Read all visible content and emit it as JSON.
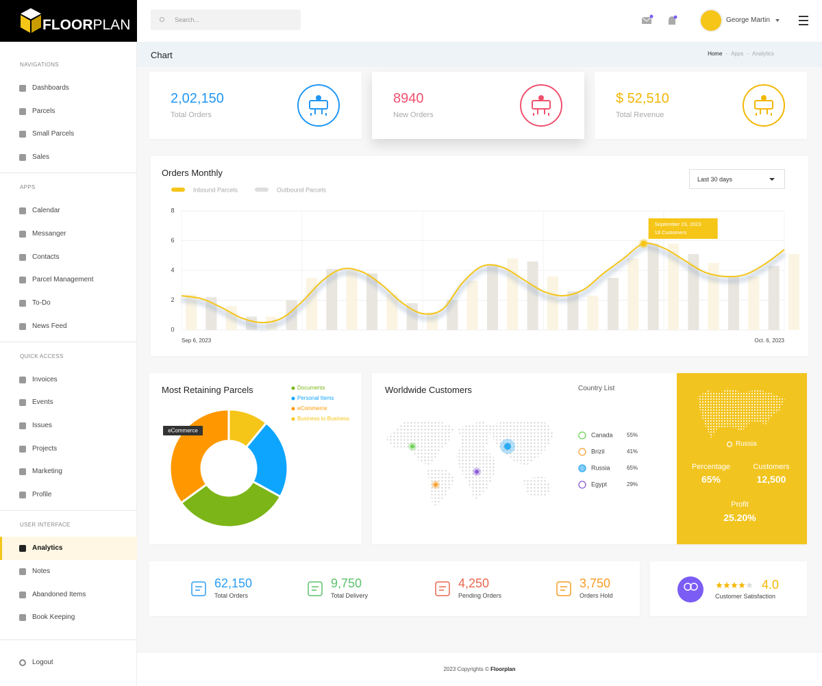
{
  "brand": {
    "bold": "FLOOR",
    "light": "PLAN"
  },
  "header": {
    "search_placeholder": "Search...",
    "user": "George Martin"
  },
  "sidebar": {
    "sections": [
      {
        "title": "NAVIGATIONS",
        "items": [
          {
            "label": "Dashboards"
          },
          {
            "label": "Parcels"
          },
          {
            "label": "Small Parcels"
          },
          {
            "label": "Sales"
          }
        ]
      },
      {
        "title": "APPS",
        "items": [
          {
            "label": "Calendar"
          },
          {
            "label": "Messanger"
          },
          {
            "label": "Contacts"
          },
          {
            "label": "Parcel Management"
          },
          {
            "label": "To-Do"
          },
          {
            "label": "News Feed"
          }
        ]
      },
      {
        "title": "QUICK ACCESS",
        "items": [
          {
            "label": "Invoices"
          },
          {
            "label": "Events"
          },
          {
            "label": "Issues"
          },
          {
            "label": "Projects"
          },
          {
            "label": "Marketing"
          },
          {
            "label": "Profile"
          }
        ]
      },
      {
        "title": "USER INTERFACE",
        "items": [
          {
            "label": "Analytics",
            "active": true
          },
          {
            "label": "Notes"
          },
          {
            "label": "Abandoned Items"
          },
          {
            "label": "Book Keeping"
          }
        ]
      }
    ],
    "logout": "Logout"
  },
  "page": {
    "title": "Chart",
    "breadcrumb": [
      "Home",
      "Apps",
      "Analytics"
    ]
  },
  "stat_cards": [
    {
      "value": "2,02,150",
      "label": "Total Orders",
      "color": "#2196f3"
    },
    {
      "value": "8940",
      "label": "New Orders",
      "color": "#f0506e"
    },
    {
      "value": "$ 52,510",
      "label": "Total Revenue",
      "color": "#f2b705"
    }
  ],
  "chart_data": [
    {
      "type": "line",
      "title": "Orders Monthly",
      "control": "Last 30 days",
      "categories": [
        "Sep 6, 2023",
        null,
        null,
        null,
        null,
        null,
        null,
        null,
        null,
        null,
        null,
        null,
        null,
        null,
        null,
        null,
        null,
        null,
        null,
        null,
        null,
        null,
        null,
        null,
        null,
        null,
        null,
        null,
        null,
        null,
        "Oct. 6, 2023"
      ],
      "series": [
        {
          "name": "Inbound Parcels",
          "color": "#f5c518",
          "values": [
            2.3,
            2.1,
            1.5,
            0.8,
            0.5,
            0.8,
            1.9,
            3.3,
            4.1,
            3.9,
            3.0,
            1.8,
            1.1,
            1.4,
            3.2,
            4.3,
            4.2,
            3.4,
            2.6,
            2.3,
            2.7,
            3.8,
            4.8,
            5.8,
            5.5,
            4.7,
            3.9,
            3.6,
            3.7,
            4.4,
            5.4
          ]
        },
        {
          "name": "Outbound Parcels",
          "type": "bar",
          "color": "#e9e6df",
          "values": [
            2.4,
            2.2,
            1.6,
            0.9,
            0.9,
            2.0,
            3.5,
            4.1,
            4.0,
            3.8,
            2.4,
            1.8,
            1.2,
            2.0,
            3.3,
            4.4,
            4.8,
            4.6,
            3.6,
            2.6,
            2.3,
            3.5,
            4.8,
            5.8,
            5.8,
            5.1,
            4.5,
            3.6,
            3.6,
            4.3,
            5.1
          ]
        }
      ],
      "annotation": {
        "title": "September 23, 2023",
        "text": "18 Customers"
      },
      "ylim": [
        0,
        8
      ],
      "yticks": [
        0,
        2,
        4,
        6,
        8
      ],
      "grid": true
    },
    {
      "type": "pie",
      "title": "Most Retaining Parcels",
      "categories": [
        "Business to Business",
        "Personal Items",
        "Documents",
        "eCommerce"
      ],
      "values": [
        11,
        22,
        32,
        35
      ],
      "colors": [
        "#f5c518",
        "#0ea5ff",
        "#7cb518",
        "#ff9800"
      ]
    }
  ],
  "world": {
    "title": "Worldwide Customers",
    "list_title": "Country List",
    "countries": [
      {
        "name": "Canada",
        "percent": "55%",
        "color": "#6fd35a"
      },
      {
        "name": "Brizil",
        "percent": "41%",
        "color": "#f7a336"
      },
      {
        "name": "Russia",
        "percent": "65%",
        "color": "#2eaaf2",
        "selected": true
      },
      {
        "name": "Egypt",
        "percent": "29%",
        "color": "#8a5cd6"
      }
    ],
    "panel": {
      "percentage": "Percentage",
      "customers": "Customers",
      "customers_value": "12,500",
      "profit": "Profit",
      "profit_value": "25.20%"
    }
  },
  "summary": {
    "items": [
      {
        "value": "62,150",
        "label": "Total Orders",
        "color": "#2a9df4"
      },
      {
        "value": "9,750",
        "label": "Total Delivery",
        "color": "#5cc26b"
      },
      {
        "value": "4,250",
        "label": "Pending Orders",
        "color": "#e8664f"
      },
      {
        "value": "3,750",
        "label": "Orders Hold",
        "color": "#f59b23"
      }
    ],
    "satisfaction": {
      "rating": {
        "value": 4,
        "label": "4.0"
      },
      "label": "Customer Satisfaction"
    }
  },
  "footer": {
    "text": "2023 Copyrights ©",
    "brand": "Floorplan"
  }
}
